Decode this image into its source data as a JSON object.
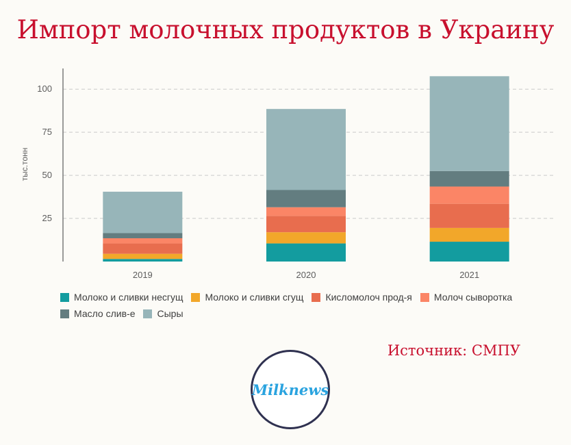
{
  "title": "Импорт молочных продуктов в Украину",
  "source": "Источник: СМПУ",
  "logo_text": "Milknews",
  "colors": {
    "background": "#fcfbf7",
    "title": "#c8102e",
    "grid": "#c9c9c9",
    "axis": "#7a7a7a",
    "logo_border": "#2f3150",
    "logo_text": "#2aa3df"
  },
  "chart_data": {
    "type": "bar",
    "stacked": true,
    "categories": [
      "2019",
      "2020",
      "2021"
    ],
    "ylabel": "тыс.тонн",
    "xlabel": "",
    "ylim": [
      0,
      112
    ],
    "yticks": [
      25,
      50,
      75,
      100
    ],
    "grid": true,
    "legend_position": "bottom",
    "series": [
      {
        "name": "Молоко и сливки несгущ",
        "color": "#139c9f",
        "values": [
          1.5,
          10.5,
          11.5
        ]
      },
      {
        "name": "Молоко и сливки сгущ",
        "color": "#f2a72a",
        "values": [
          3,
          6.5,
          8
        ]
      },
      {
        "name": "Кисломолоч прод-я",
        "color": "#e86d4e",
        "values": [
          6,
          9.5,
          14
        ]
      },
      {
        "name": "Молоч сыворотка",
        "color": "#fb8566",
        "values": [
          3,
          5,
          10
        ]
      },
      {
        "name": "Масло слив-е",
        "color": "#637d80",
        "values": [
          3,
          10,
          9
        ]
      },
      {
        "name": "Сыры",
        "color": "#97b5b9",
        "values": [
          24,
          47,
          55
        ]
      }
    ]
  }
}
